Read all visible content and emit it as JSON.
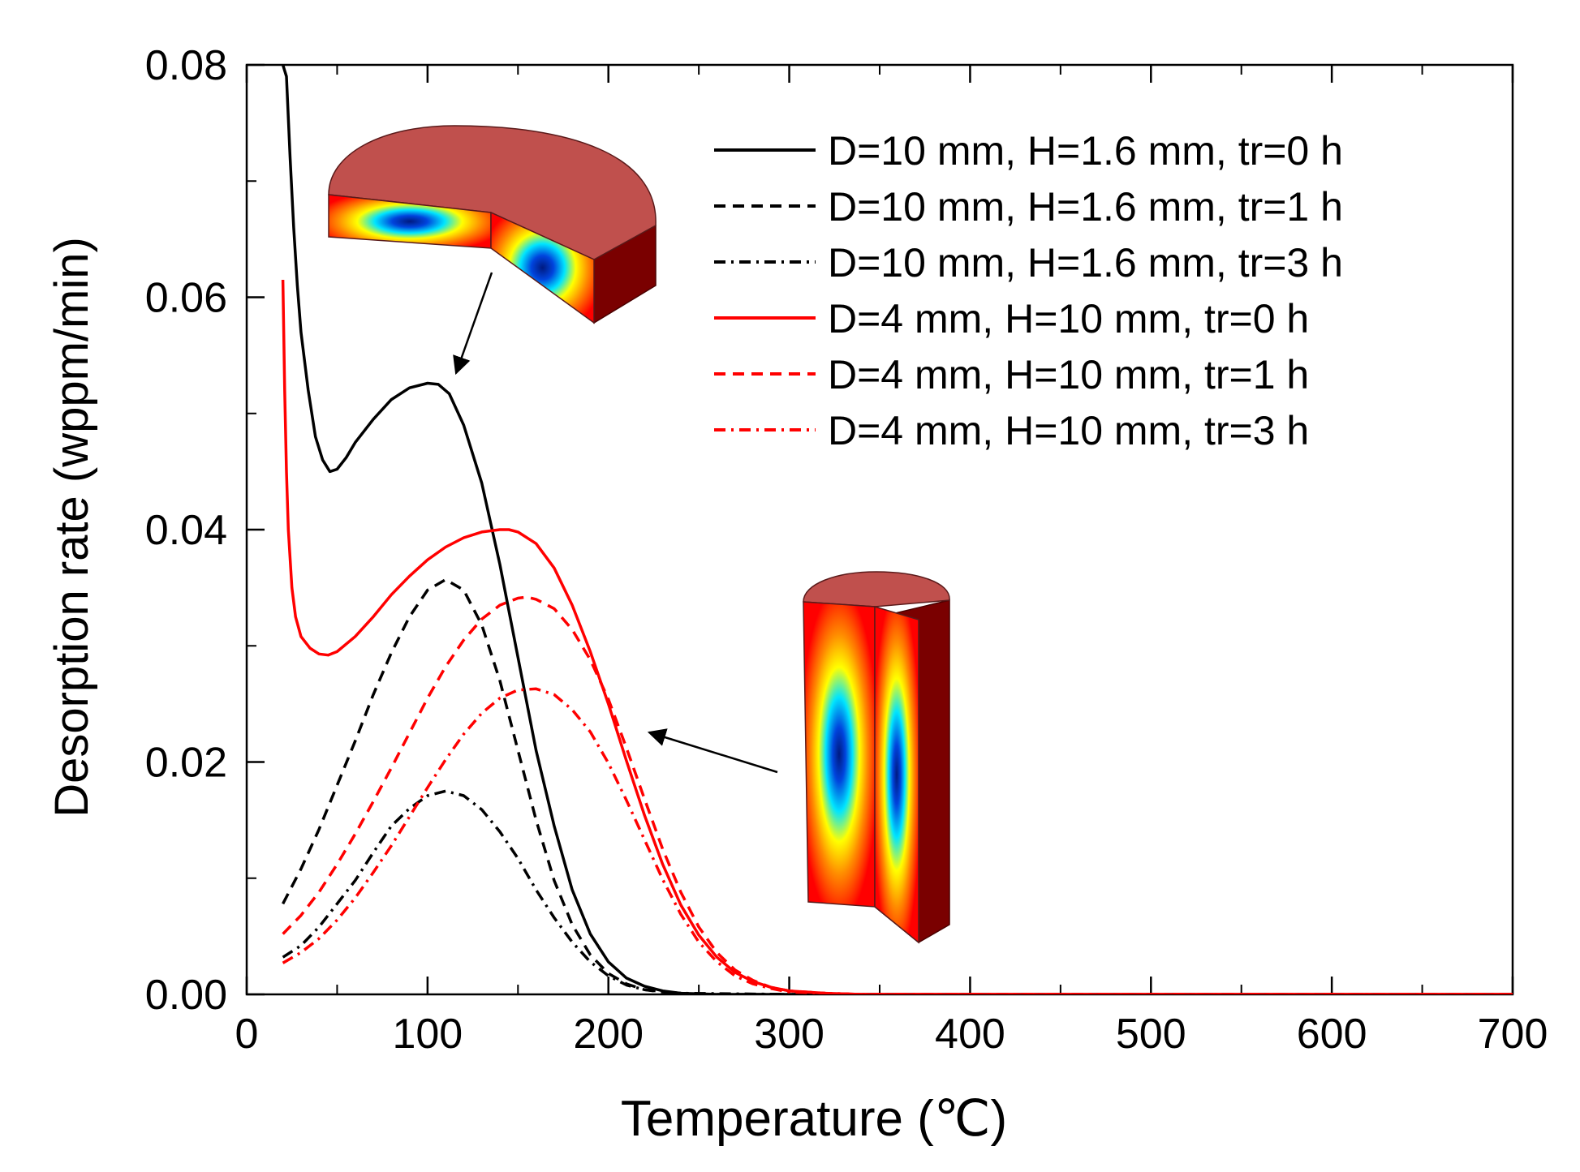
{
  "chart_data": {
    "type": "line",
    "title": "",
    "xlabel": "Temperature (℃)",
    "ylabel": "Desorption rate (wppm/min)",
    "xlim": [
      0,
      700
    ],
    "ylim": [
      0,
      0.08
    ],
    "x_ticks": [
      "0",
      "100",
      "200",
      "300",
      "400",
      "500",
      "600",
      "700"
    ],
    "y_ticks": [
      "0.00",
      "0.02",
      "0.04",
      "0.06",
      "0.08"
    ],
    "grid": false,
    "legend_position": "top-right",
    "series": [
      {
        "name": "D=10 mm, H=1.6 mm, tr=0 h",
        "color": "#000000",
        "dash": "solid",
        "x": [
          20,
          22,
          24,
          26,
          28,
          30,
          34,
          38,
          42,
          46,
          50,
          55,
          60,
          70,
          80,
          90,
          100,
          106,
          112,
          120,
          130,
          140,
          150,
          160,
          170,
          180,
          190,
          200,
          210,
          220,
          230,
          240,
          250,
          260,
          300,
          400,
          500,
          600,
          700
        ],
        "y": [
          0.08,
          0.079,
          0.072,
          0.066,
          0.061,
          0.057,
          0.052,
          0.048,
          0.046,
          0.045,
          0.0452,
          0.0462,
          0.0475,
          0.0495,
          0.0512,
          0.0522,
          0.0526,
          0.0525,
          0.0517,
          0.049,
          0.044,
          0.037,
          0.029,
          0.021,
          0.0145,
          0.009,
          0.0052,
          0.0028,
          0.0014,
          0.0007,
          0.0003,
          0.0001,
          5e-05,
          0.0,
          0.0,
          0.0,
          0.0,
          0.0,
          0.0
        ]
      },
      {
        "name": "D=10 mm, H=1.6 mm, tr=1 h",
        "color": "#000000",
        "dash": "dashed",
        "x": [
          20,
          30,
          40,
          50,
          60,
          70,
          80,
          90,
          100,
          110,
          120,
          130,
          140,
          150,
          160,
          170,
          180,
          190,
          200,
          210,
          220,
          230,
          250,
          300,
          700
        ],
        "y": [
          0.0078,
          0.0108,
          0.0142,
          0.018,
          0.0218,
          0.0258,
          0.0294,
          0.0325,
          0.0348,
          0.0357,
          0.0348,
          0.0318,
          0.027,
          0.021,
          0.015,
          0.0098,
          0.006,
          0.0034,
          0.0018,
          0.0009,
          0.0004,
          0.0002,
          0.0,
          0.0,
          0.0
        ]
      },
      {
        "name": "D=10 mm, H=1.6 mm, tr=3 h",
        "color": "#000000",
        "dash": "dashdot",
        "x": [
          20,
          30,
          40,
          50,
          60,
          70,
          80,
          90,
          100,
          110,
          120,
          130,
          140,
          150,
          160,
          170,
          180,
          190,
          200,
          210,
          220,
          240,
          300,
          700
        ],
        "y": [
          0.0032,
          0.0042,
          0.0058,
          0.0078,
          0.0098,
          0.0122,
          0.0145,
          0.016,
          0.0171,
          0.0175,
          0.0171,
          0.0159,
          0.014,
          0.0117,
          0.009,
          0.0066,
          0.0045,
          0.0028,
          0.0016,
          0.0008,
          0.0004,
          0.0001,
          0.0,
          0.0
        ]
      },
      {
        "name": "D=4 mm, H=10 mm, tr=0 h",
        "color": "#ff0000",
        "dash": "solid",
        "x": [
          20,
          21,
          22,
          23,
          25,
          27,
          30,
          35,
          40,
          45,
          50,
          60,
          70,
          80,
          90,
          100,
          110,
          120,
          130,
          140,
          145,
          150,
          160,
          170,
          180,
          190,
          200,
          210,
          220,
          230,
          240,
          250,
          260,
          270,
          280,
          290,
          300,
          320,
          340,
          400,
          500,
          600,
          700
        ],
        "y": [
          0.0615,
          0.052,
          0.045,
          0.04,
          0.035,
          0.0325,
          0.0308,
          0.0298,
          0.0293,
          0.0292,
          0.0295,
          0.0308,
          0.0325,
          0.0344,
          0.036,
          0.0374,
          0.0385,
          0.0393,
          0.0398,
          0.04,
          0.04,
          0.0398,
          0.0388,
          0.0367,
          0.0335,
          0.0295,
          0.025,
          0.0201,
          0.0154,
          0.0112,
          0.0077,
          0.0051,
          0.0032,
          0.0019,
          0.0011,
          0.0006,
          0.0003,
          0.0001,
          0.0,
          0.0,
          0.0,
          0.0,
          0.0
        ]
      },
      {
        "name": "D=4 mm, H=10 mm, tr=1 h",
        "color": "#ff0000",
        "dash": "dashed",
        "x": [
          20,
          30,
          40,
          50,
          60,
          70,
          80,
          90,
          100,
          110,
          120,
          130,
          140,
          150,
          155,
          160,
          170,
          180,
          190,
          200,
          210,
          220,
          230,
          240,
          250,
          260,
          270,
          280,
          290,
          300,
          320,
          340,
          700
        ],
        "y": [
          0.0052,
          0.0068,
          0.0088,
          0.0112,
          0.0138,
          0.0166,
          0.0195,
          0.0225,
          0.0255,
          0.0282,
          0.0305,
          0.0323,
          0.0335,
          0.0341,
          0.0342,
          0.034,
          0.0332,
          0.0314,
          0.0288,
          0.0254,
          0.0212,
          0.0168,
          0.0125,
          0.0088,
          0.0058,
          0.0036,
          0.0021,
          0.0012,
          0.0006,
          0.0003,
          0.0001,
          0.0,
          0.0
        ]
      },
      {
        "name": "D=4 mm, H=10 mm, tr=3 h",
        "color": "#ff0000",
        "dash": "dashdot",
        "x": [
          20,
          30,
          40,
          50,
          60,
          70,
          80,
          90,
          100,
          110,
          120,
          130,
          140,
          150,
          160,
          170,
          180,
          190,
          200,
          210,
          220,
          230,
          240,
          250,
          260,
          270,
          280,
          290,
          300,
          320,
          340,
          700
        ],
        "y": [
          0.0027,
          0.0036,
          0.0048,
          0.0064,
          0.0083,
          0.0105,
          0.0128,
          0.0153,
          0.0178,
          0.0202,
          0.0224,
          0.0242,
          0.0255,
          0.0262,
          0.0263,
          0.0258,
          0.0245,
          0.0226,
          0.0199,
          0.0167,
          0.0133,
          0.0099,
          0.0069,
          0.0045,
          0.0028,
          0.0016,
          0.0009,
          0.0005,
          0.0002,
          0.0001,
          0.0,
          0.0
        ]
      }
    ],
    "insets": [
      {
        "name": "disc-specimen-cutaway",
        "points_to_series": "D=10 mm, H=1.6 mm, tr=0 h",
        "arrow_target": {
          "x": 115,
          "y": 0.0535
        }
      },
      {
        "name": "cylinder-specimen-cutaway",
        "points_to_series": "D=4 mm, H=10 mm, tr=0 h",
        "arrow_target": {
          "x": 220,
          "y": 0.0225
        }
      }
    ],
    "colors": {
      "heat_red": "#ff0000",
      "heat_orange": "#ff8a00",
      "heat_yellow": "#ffff00",
      "heat_cyan": "#00e5ff",
      "heat_blue": "#0044dd",
      "heat_deep": "#001a80",
      "surface": "#c0504d",
      "side_dark": "#7a0000"
    }
  }
}
